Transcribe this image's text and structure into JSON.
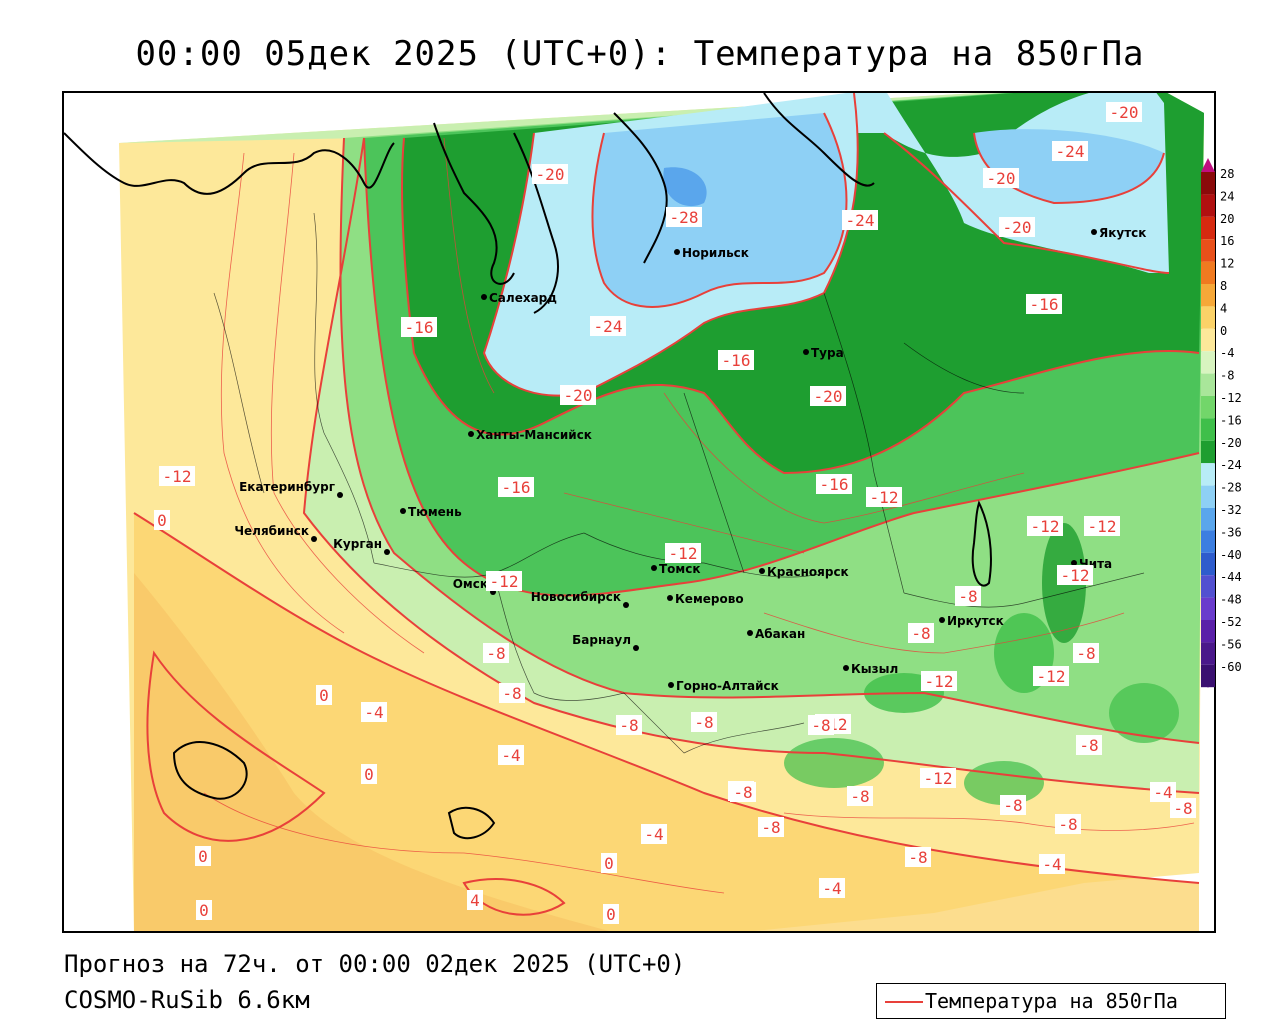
{
  "header": {
    "title": "00:00 05дек 2025 (UTC+0): Температура на 850гПа"
  },
  "footer": {
    "forecast": "Прогноз на 72ч. от 00:00 02дек 2025 (UTC+0)",
    "model": "COSMO-RuSib 6.6км"
  },
  "legend": {
    "line_label": "Температура на 850гПа",
    "line_color": "#e8403a"
  },
  "scale": {
    "ticks": [
      "28",
      "24",
      "20",
      "16",
      "12",
      "8",
      "4",
      "0",
      "-4",
      "-8",
      "-12",
      "-16",
      "-20",
      "-24",
      "-28",
      "-32",
      "-36",
      "-40",
      "-44",
      "-48",
      "-52",
      "-56",
      "-60"
    ],
    "colors": [
      "#8a0a0a",
      "#b01010",
      "#d62a10",
      "#e8501a",
      "#f07a20",
      "#f6a838",
      "#fbd268",
      "#fde89a",
      "#d8f4c0",
      "#a9e69a",
      "#72d66a",
      "#3fbf4a",
      "#1e9e30",
      "#b8ecf7",
      "#8ed0f5",
      "#5aa6ec",
      "#3c7ee0",
      "#2e5ccc",
      "#5250d0",
      "#6a3ccc",
      "#5a20a8",
      "#4a188a",
      "#3a1070"
    ]
  },
  "cities": [
    {
      "name": "Салехард"
    },
    {
      "name": "Норильск"
    },
    {
      "name": "Якутск"
    },
    {
      "name": "Тура"
    },
    {
      "name": "Ханты-Мансийск"
    },
    {
      "name": "Екатеринбург"
    },
    {
      "name": "Тюмень"
    },
    {
      "name": "Челябинск"
    },
    {
      "name": "Курган"
    },
    {
      "name": "Омск"
    },
    {
      "name": "Новосибирск"
    },
    {
      "name": "Томск"
    },
    {
      "name": "Кемерово"
    },
    {
      "name": "Красноярск"
    },
    {
      "name": "Барнаул"
    },
    {
      "name": "Абакан"
    },
    {
      "name": "Горно-Алтайск"
    },
    {
      "name": "Кызыл"
    },
    {
      "name": "Иркутск"
    },
    {
      "name": "Чита"
    }
  ],
  "isotherm_labels": [
    "-20",
    "-24",
    "-20",
    "-28",
    "-24",
    "-20",
    "-20",
    "-16",
    "-16",
    "-24",
    "-16",
    "-20",
    "-20",
    "-16",
    "-16",
    "-12",
    "-12",
    "-12",
    "-12",
    "-12",
    "-8",
    "-8",
    "-8",
    "-8",
    "-8",
    "-8",
    "-8",
    "-4",
    "0",
    "0",
    "0",
    "0",
    "-4",
    "-4",
    "0",
    "0",
    "4",
    "-8",
    "-8",
    "-12",
    "-12",
    "-12",
    "-12",
    "-8",
    "-8",
    "-8",
    "-8",
    "-8",
    "-8",
    "-4",
    "-4",
    "-12",
    "-8",
    "-8",
    "-12",
    "-4",
    "0"
  ]
}
